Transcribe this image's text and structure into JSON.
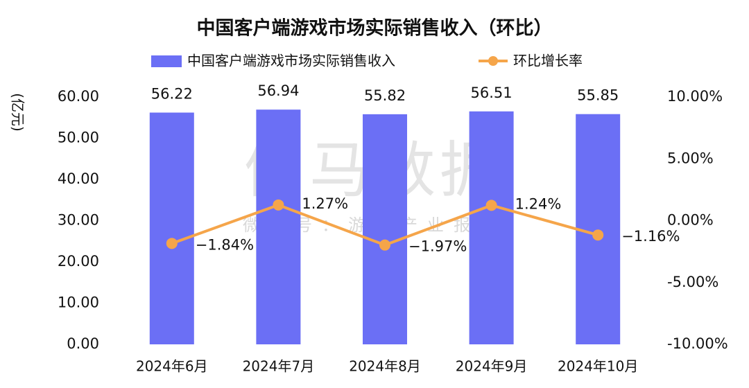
{
  "chart_data": {
    "type": "combo",
    "title": "中国客户端游戏市场实际销售收入（环比）",
    "y_label": "(亿元)",
    "watermark": "伽马数据",
    "watermark_sub": "微信号：游戏产业报告",
    "categories": [
      "2024年6月",
      "2024年7月",
      "2024年8月",
      "2024年9月",
      "2024年10月"
    ],
    "series": [
      {
        "name": "中国客户端游戏市场实际销售收入",
        "type": "bar",
        "color": "#6b6ff5",
        "values": [
          56.22,
          56.94,
          55.82,
          56.51,
          55.85
        ]
      },
      {
        "name": "环比增长率",
        "type": "line",
        "axis": "y2",
        "color": "#f5a54a",
        "values": [
          -1.84,
          1.27,
          -1.97,
          1.24,
          -1.16
        ],
        "value_labels": [
          "−1.84%",
          "1.27%",
          "−1.97%",
          "1.24%",
          "−1.16%"
        ]
      }
    ],
    "ylim": [
      0,
      60
    ],
    "yticks": [
      {
        "value": 0,
        "label": "0.00"
      },
      {
        "value": 10,
        "label": "10.00"
      },
      {
        "value": 20,
        "label": "20.00"
      },
      {
        "value": 30,
        "label": "30.00"
      },
      {
        "value": 40,
        "label": "40.00"
      },
      {
        "value": 50,
        "label": "50.00"
      },
      {
        "value": 60,
        "label": "60.00"
      }
    ],
    "y2lim": [
      -10,
      10
    ],
    "y2ticks": [
      {
        "value": -10,
        "label": "-10.00%"
      },
      {
        "value": -5,
        "label": "-5.00%"
      },
      {
        "value": 0,
        "label": "0.00%"
      },
      {
        "value": 5,
        "label": "5.00%"
      },
      {
        "value": 10,
        "label": "10.00%"
      }
    ],
    "grid": false
  }
}
